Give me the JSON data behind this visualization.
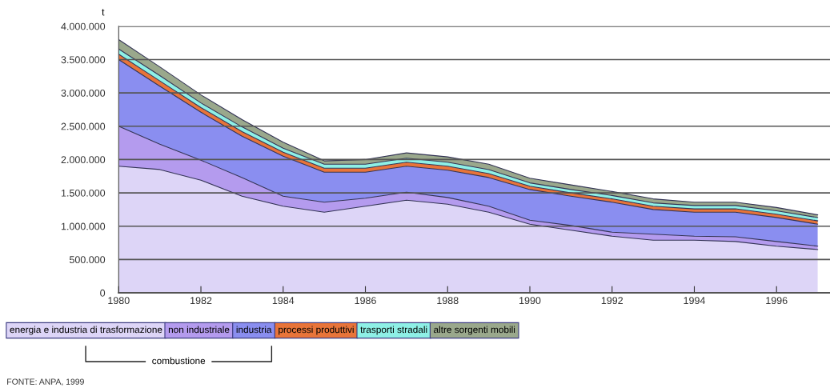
{
  "chart_data": {
    "type": "area",
    "stacked": true,
    "ylabel": "t",
    "x": [
      1980,
      1981,
      1982,
      1983,
      1984,
      1985,
      1986,
      1987,
      1988,
      1989,
      1990,
      1991,
      1992,
      1993,
      1994,
      1995,
      1996,
      1997
    ],
    "series": [
      {
        "name": "energia e industria di trasformazione",
        "color": "#ddd5f7",
        "values": [
          1900000,
          1850000,
          1690000,
          1450000,
          1300000,
          1210000,
          1300000,
          1390000,
          1330000,
          1210000,
          1030000,
          940000,
          850000,
          790000,
          790000,
          770000,
          700000,
          650000
        ]
      },
      {
        "name": "non industriale",
        "color": "#b49bee",
        "values": [
          600000,
          380000,
          300000,
          280000,
          150000,
          150000,
          120000,
          120000,
          100000,
          90000,
          60000,
          70000,
          60000,
          90000,
          60000,
          70000,
          70000,
          50000
        ]
      },
      {
        "name": "industria",
        "color": "#8a8ef0",
        "values": [
          1000000,
          870000,
          720000,
          620000,
          600000,
          450000,
          390000,
          390000,
          410000,
          430000,
          460000,
          440000,
          450000,
          370000,
          360000,
          370000,
          360000,
          330000
        ]
      },
      {
        "name": "processi produttivi",
        "color": "#e8743a",
        "values": [
          80000,
          80000,
          70000,
          70000,
          60000,
          60000,
          60000,
          60000,
          60000,
          60000,
          50000,
          50000,
          50000,
          50000,
          50000,
          50000,
          50000,
          50000
        ]
      },
      {
        "name": "trasporti stradali",
        "color": "#8ef0e6",
        "values": [
          80000,
          80000,
          70000,
          70000,
          60000,
          60000,
          60000,
          60000,
          60000,
          60000,
          50000,
          50000,
          50000,
          50000,
          50000,
          50000,
          50000,
          50000
        ]
      },
      {
        "name": "altre sorgenti mobili",
        "color": "#9aa88c",
        "values": [
          140000,
          130000,
          120000,
          110000,
          90000,
          50000,
          70000,
          80000,
          80000,
          80000,
          70000,
          70000,
          60000,
          60000,
          50000,
          50000,
          50000,
          40000
        ]
      }
    ],
    "xlim": [
      1980,
      1997.3
    ],
    "xticks": [
      1980,
      1982,
      1984,
      1986,
      1988,
      1990,
      1992,
      1994,
      1996
    ],
    "ylim": [
      0,
      4000000
    ],
    "yticks": [
      0,
      {
        "value": 500000,
        "label": "500.000"
      },
      {
        "value": 1000000,
        "label": "1.000.000"
      },
      {
        "value": 1500000,
        "label": "1.500.000"
      },
      {
        "value": 2000000,
        "label": "2.000.000"
      },
      {
        "value": 2500000,
        "label": "2.500.000"
      },
      {
        "value": 3000000,
        "label": "3.000.000"
      },
      {
        "value": 3500000,
        "label": "3.500.000"
      },
      {
        "value": 4000000,
        "label": "4.000.000"
      }
    ],
    "grid": "y",
    "legend": "bottom",
    "annotations": [
      "combustione",
      "FONTE: ANPA, 1999"
    ]
  }
}
